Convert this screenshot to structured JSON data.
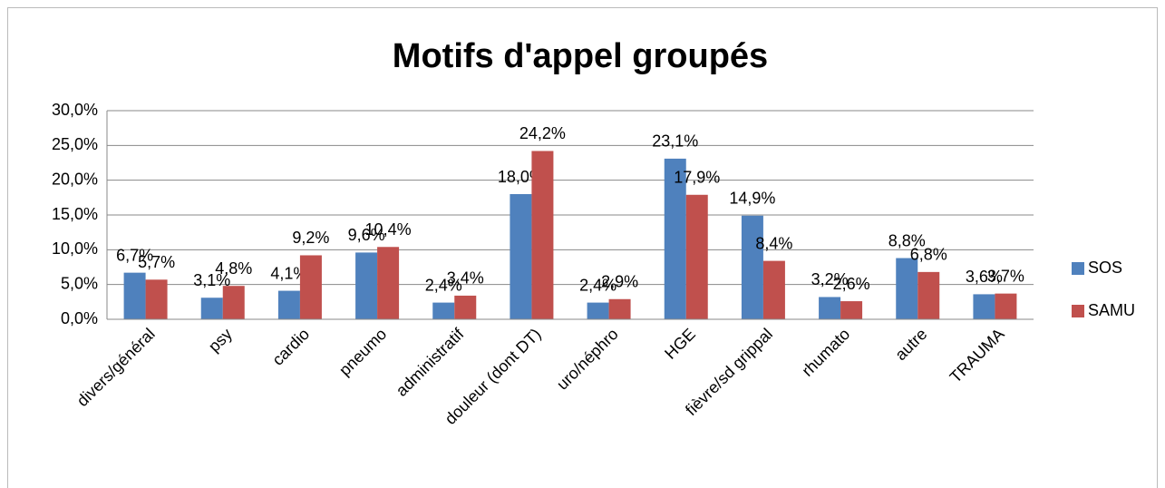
{
  "chart_data": {
    "type": "bar",
    "title": "Motifs d'appel groupés",
    "categories": [
      "divers/général",
      "psy",
      "cardio",
      "pneumo",
      "administratif",
      "douleur (dont DT)",
      "uro/néphro",
      "HGE",
      "fièvre/sd grippal",
      "rhumato",
      "autre",
      "TRAUMA"
    ],
    "series": [
      {
        "name": "SOS",
        "color": "#4f81bd",
        "values": [
          6.7,
          3.1,
          4.1,
          9.6,
          2.4,
          18.0,
          2.4,
          23.1,
          14.9,
          3.2,
          8.8,
          3.6
        ],
        "value_labels": [
          "6,7%",
          "3,1%",
          "4,1%",
          "9,6%",
          "2,4%",
          "18,0%",
          "2,4%",
          "23,1%",
          "14,9%",
          "3,2%",
          "8,8%",
          "3,6%"
        ]
      },
      {
        "name": "SAMU",
        "color": "#c0504d",
        "values": [
          5.7,
          4.8,
          9.2,
          10.4,
          3.4,
          24.2,
          2.9,
          17.9,
          8.4,
          2.6,
          6.8,
          3.7
        ],
        "value_labels": [
          "5,7%",
          "4,8%",
          "9,2%",
          "10,4%",
          "3,4%",
          "24,2%",
          "2,9%",
          "17,9%",
          "8,4%",
          "2,6%",
          "6,8%",
          "3,7%"
        ]
      }
    ],
    "ylim": [
      0,
      30
    ],
    "yticks": [
      {
        "value": 0,
        "label": "0,0%"
      },
      {
        "value": 5,
        "label": "5,0%"
      },
      {
        "value": 10,
        "label": "10,0%"
      },
      {
        "value": 15,
        "label": "15,0%"
      },
      {
        "value": 20,
        "label": "20,0%"
      },
      {
        "value": 25,
        "label": "25,0%"
      },
      {
        "value": 30,
        "label": "30,0%"
      }
    ],
    "grid": true,
    "legend": "right"
  }
}
